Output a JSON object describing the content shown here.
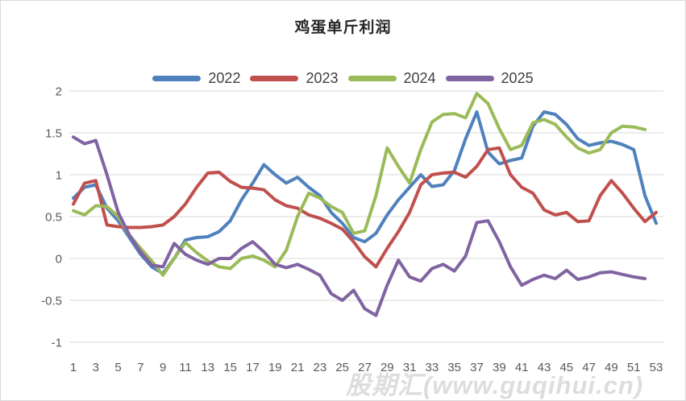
{
  "window": {
    "background": "#ffffff",
    "border_color": "#d9d9d9"
  },
  "watermark": {
    "text": "股期汇(www.guqihui.cn)"
  },
  "chart_data": {
    "type": "line",
    "title": "鸡蛋单斤利润",
    "xlabel": "",
    "ylabel": "",
    "x_unit": "week-of-year",
    "x_range": [
      1,
      53
    ],
    "ylim": [
      -1,
      2
    ],
    "grid": "horizontal",
    "legend_position": "top",
    "gridline_color": "#d9d9d9",
    "axis_text_color": "#595959",
    "y_ticks": [
      2,
      1.5,
      1,
      0.5,
      0,
      -0.5,
      -1
    ],
    "y_tick_labels": [
      "2",
      "1.5",
      "1",
      "0.5",
      "0",
      "-0.5",
      "-1"
    ],
    "x_ticks": [
      1,
      3,
      5,
      7,
      9,
      11,
      13,
      15,
      17,
      19,
      21,
      23,
      25,
      27,
      29,
      31,
      33,
      35,
      37,
      39,
      41,
      43,
      45,
      47,
      49,
      51,
      53
    ],
    "series": [
      {
        "name": "2022",
        "color": "#4F81BD",
        "start_week": 1,
        "values": [
          0.72,
          0.85,
          0.88,
          0.6,
          0.45,
          0.25,
          0.05,
          -0.1,
          -0.18,
          0.0,
          0.22,
          0.25,
          0.26,
          0.32,
          0.45,
          0.7,
          0.9,
          1.12,
          1.0,
          0.9,
          0.97,
          0.85,
          0.75,
          0.55,
          0.42,
          0.25,
          0.2,
          0.3,
          0.52,
          0.7,
          0.85,
          1.0,
          0.86,
          0.88,
          1.05,
          1.43,
          1.75,
          1.27,
          1.13,
          1.17,
          1.2,
          1.58,
          1.75,
          1.72,
          1.6,
          1.43,
          1.35,
          1.38,
          1.4,
          1.36,
          1.3,
          0.75,
          0.42
        ]
      },
      {
        "name": "2023",
        "color": "#C0504D",
        "start_week": 1,
        "values": [
          0.65,
          0.9,
          0.93,
          0.4,
          0.38,
          0.37,
          0.37,
          0.38,
          0.4,
          0.5,
          0.65,
          0.85,
          1.02,
          1.03,
          0.92,
          0.85,
          0.84,
          0.82,
          0.7,
          0.63,
          0.6,
          0.52,
          0.48,
          0.42,
          0.35,
          0.2,
          0.02,
          -0.1,
          0.12,
          0.32,
          0.55,
          0.88,
          1.0,
          1.02,
          1.03,
          0.97,
          1.1,
          1.3,
          1.32,
          1.0,
          0.85,
          0.78,
          0.58,
          0.52,
          0.55,
          0.44,
          0.45,
          0.75,
          0.93,
          0.78,
          0.6,
          0.44,
          0.55
        ]
      },
      {
        "name": "2024",
        "color": "#9BBB59",
        "start_week": 1,
        "values": [
          0.57,
          0.52,
          0.63,
          0.62,
          0.5,
          0.28,
          0.12,
          -0.03,
          -0.2,
          0.0,
          0.19,
          0.07,
          -0.03,
          -0.1,
          -0.12,
          0.0,
          0.03,
          -0.02,
          -0.1,
          0.1,
          0.5,
          0.78,
          0.72,
          0.62,
          0.55,
          0.3,
          0.33,
          0.75,
          1.32,
          1.1,
          0.9,
          1.3,
          1.63,
          1.72,
          1.73,
          1.68,
          1.97,
          1.85,
          1.55,
          1.3,
          1.35,
          1.62,
          1.66,
          1.6,
          1.45,
          1.32,
          1.26,
          1.3,
          1.5,
          1.58,
          1.57,
          1.54
        ]
      },
      {
        "name": "2025",
        "color": "#8064A2",
        "start_week": 1,
        "values": [
          1.45,
          1.37,
          1.41,
          1.0,
          0.55,
          0.28,
          0.08,
          -0.08,
          -0.1,
          0.18,
          0.05,
          -0.02,
          -0.07,
          0.0,
          0.0,
          0.12,
          0.2,
          0.08,
          -0.07,
          -0.11,
          -0.07,
          -0.13,
          -0.2,
          -0.42,
          -0.5,
          -0.38,
          -0.6,
          -0.68,
          -0.32,
          -0.02,
          -0.22,
          -0.27,
          -0.12,
          -0.07,
          -0.15,
          0.03,
          0.43,
          0.45,
          0.2,
          -0.1,
          -0.32,
          -0.25,
          -0.2,
          -0.24,
          -0.14,
          -0.25,
          -0.22,
          -0.17,
          -0.16,
          -0.19,
          -0.22,
          -0.24
        ]
      }
    ]
  }
}
